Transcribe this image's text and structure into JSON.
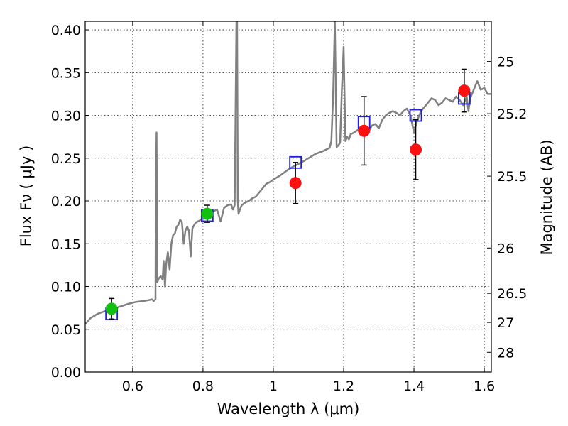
{
  "chart_data": {
    "type": "scatter",
    "xlabel": "Wavelength  λ (μm)",
    "ylabel": "Flux  Fν ( μJy )",
    "ylabel_right": "Magnitude (AB)",
    "xlim": [
      0.465,
      1.62
    ],
    "ylim": [
      0.0,
      0.41
    ],
    "grid": true,
    "x_ticks": [
      0.6,
      0.8,
      1.0,
      1.2,
      1.4,
      1.6
    ],
    "x_tick_labels": [
      "0.6",
      "0.8",
      "1",
      "1.2",
      "1.4",
      "1.6"
    ],
    "y_ticks": [
      0.0,
      0.05,
      0.1,
      0.15,
      0.2,
      0.25,
      0.3,
      0.35,
      0.4
    ],
    "y_tick_labels": [
      "0.00",
      "0.05",
      "0.10",
      "0.15",
      "0.20",
      "0.25",
      "0.30",
      "0.35",
      "0.40"
    ],
    "right_ticks": [
      {
        "label": "25",
        "flux": 0.363
      },
      {
        "label": "25.2",
        "flux": 0.302
      },
      {
        "label": "25.5",
        "flux": 0.229
      },
      {
        "label": "26",
        "flux": 0.145
      },
      {
        "label": "26.5",
        "flux": 0.092
      },
      {
        "label": "27",
        "flux": 0.058
      },
      {
        "label": "28",
        "flux": 0.023
      }
    ],
    "series": [
      {
        "kind": "line",
        "color": "#808080",
        "x": [
          0.465,
          0.48,
          0.5,
          0.52,
          0.535,
          0.55,
          0.56,
          0.575,
          0.59,
          0.61,
          0.63,
          0.645,
          0.655,
          0.66,
          0.665,
          0.666,
          0.668,
          0.67,
          0.675,
          0.68,
          0.685,
          0.688,
          0.692,
          0.695,
          0.7,
          0.705,
          0.71,
          0.715,
          0.72,
          0.725,
          0.73,
          0.735,
          0.74,
          0.745,
          0.75,
          0.755,
          0.76,
          0.765,
          0.77,
          0.775,
          0.78,
          0.79,
          0.8,
          0.81,
          0.82,
          0.83,
          0.84,
          0.85,
          0.86,
          0.87,
          0.88,
          0.885,
          0.89,
          0.895,
          0.897,
          0.899,
          0.901,
          0.905,
          0.91,
          0.92,
          0.93,
          0.94,
          0.95,
          0.96,
          0.97,
          0.98,
          0.99,
          1.0,
          1.02,
          1.04,
          1.06,
          1.08,
          1.1,
          1.12,
          1.14,
          1.15,
          1.16,
          1.165,
          1.17,
          1.175,
          1.18,
          1.185,
          1.19,
          1.195,
          1.2,
          1.205,
          1.21,
          1.215,
          1.22,
          1.23,
          1.24,
          1.25,
          1.26,
          1.27,
          1.28,
          1.29,
          1.3,
          1.31,
          1.32,
          1.33,
          1.34,
          1.35,
          1.36,
          1.37,
          1.38,
          1.39,
          1.4,
          1.41,
          1.42,
          1.43,
          1.44,
          1.45,
          1.46,
          1.47,
          1.48,
          1.49,
          1.5,
          1.51,
          1.52,
          1.53,
          1.54,
          1.55,
          1.555,
          1.56,
          1.57,
          1.58,
          1.59,
          1.6,
          1.61,
          1.62
        ],
        "y": [
          0.056,
          0.063,
          0.068,
          0.071,
          0.073,
          0.074,
          0.076,
          0.078,
          0.08,
          0.082,
          0.083,
          0.084,
          0.085,
          0.083,
          0.085,
          0.22,
          0.28,
          0.105,
          0.11,
          0.112,
          0.108,
          0.13,
          0.1,
          0.125,
          0.14,
          0.12,
          0.15,
          0.16,
          0.162,
          0.17,
          0.172,
          0.178,
          0.175,
          0.15,
          0.165,
          0.17,
          0.165,
          0.135,
          0.168,
          0.172,
          0.175,
          0.177,
          0.18,
          0.182,
          0.185,
          0.188,
          0.19,
          0.176,
          0.192,
          0.195,
          0.196,
          0.19,
          0.195,
          0.41,
          0.41,
          0.2,
          0.185,
          0.19,
          0.195,
          0.198,
          0.2,
          0.203,
          0.205,
          0.21,
          0.215,
          0.22,
          0.222,
          0.225,
          0.23,
          0.236,
          0.241,
          0.245,
          0.25,
          0.255,
          0.258,
          0.26,
          0.262,
          0.27,
          0.32,
          0.41,
          0.263,
          0.265,
          0.268,
          0.33,
          0.38,
          0.27,
          0.275,
          0.272,
          0.278,
          0.28,
          0.283,
          0.285,
          0.282,
          0.28,
          0.288,
          0.29,
          0.285,
          0.295,
          0.3,
          0.303,
          0.305,
          0.303,
          0.3,
          0.305,
          0.308,
          0.3,
          0.28,
          0.295,
          0.305,
          0.31,
          0.315,
          0.32,
          0.318,
          0.312,
          0.315,
          0.32,
          0.318,
          0.316,
          0.322,
          0.318,
          0.312,
          0.322,
          0.305,
          0.32,
          0.33,
          0.34,
          0.33,
          0.332,
          0.325,
          0.325
        ]
      },
      {
        "kind": "open-square",
        "color": "#1f1fe0",
        "x": [
          0.54,
          0.812,
          1.063,
          1.258,
          1.405,
          1.543
        ],
        "y": [
          0.068,
          0.183,
          0.245,
          0.292,
          0.3,
          0.32
        ]
      },
      {
        "kind": "filled-circle",
        "color": "#12c012",
        "x": [
          0.54,
          0.812
        ],
        "y": [
          0.074,
          0.185
        ],
        "err": [
          0.012,
          0.01
        ]
      },
      {
        "kind": "filled-circle",
        "color": "#ff1010",
        "x": [
          1.063,
          1.258,
          1.405,
          1.543
        ],
        "y": [
          0.221,
          0.282,
          0.26,
          0.329
        ],
        "err": [
          0.024,
          0.04,
          0.035,
          0.025
        ]
      }
    ]
  }
}
